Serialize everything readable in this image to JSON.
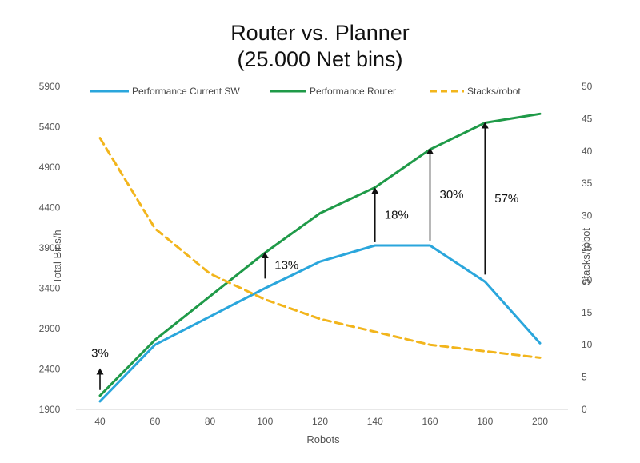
{
  "chart_data": {
    "type": "line",
    "title": "Router vs. Planner",
    "subtitle": "(25.000 Net bins)",
    "xlabel": "Robots",
    "ylabel": "Total Bins/h",
    "y2label": "Stacks/robot",
    "x": [
      40,
      60,
      80,
      100,
      120,
      140,
      160,
      180,
      200
    ],
    "x_ticks": [
      "40",
      "60",
      "80",
      "100",
      "120",
      "140",
      "160",
      "180",
      "200"
    ],
    "ylim": [
      1900,
      5900
    ],
    "y_ticks": [
      "1900",
      "2400",
      "2900",
      "3400",
      "3900",
      "4400",
      "4900",
      "5400",
      "5900"
    ],
    "y2lim": [
      0,
      50
    ],
    "y2_ticks": [
      "0",
      "5",
      "10",
      "15",
      "20",
      "25",
      "30",
      "35",
      "40",
      "45",
      "50"
    ],
    "grid": false,
    "legend_position": "top",
    "series": [
      {
        "name": "Performance Current SW",
        "axis": "left",
        "color": "#2aa6dc",
        "style": "solid",
        "values": [
          2000,
          2700,
          3050,
          3400,
          3730,
          3930,
          3930,
          3480,
          2720
        ]
      },
      {
        "name": "Performance Router",
        "axis": "left",
        "color": "#1f9a48",
        "style": "solid",
        "values": [
          2070,
          2760,
          3300,
          3840,
          4330,
          4650,
          5120,
          5450,
          5560
        ]
      },
      {
        "name": "Stacks/robot",
        "axis": "right",
        "color": "#f2b51c",
        "style": "dashed",
        "values": [
          42,
          28,
          21,
          17,
          14,
          12,
          10,
          9,
          8
        ]
      }
    ],
    "annotations": [
      {
        "label": "3%",
        "x": 40,
        "y_from": 2140,
        "y_to": 2410
      },
      {
        "label": "13%",
        "x": 100,
        "y_from": 3520,
        "y_to": 3850
      },
      {
        "label": "18%",
        "x": 140,
        "y_from": 3970,
        "y_to": 4650
      },
      {
        "label": "30%",
        "x": 160,
        "y_from": 3990,
        "y_to": 5140
      },
      {
        "label": "57%",
        "x": 180,
        "y_from": 3570,
        "y_to": 5460
      }
    ]
  }
}
